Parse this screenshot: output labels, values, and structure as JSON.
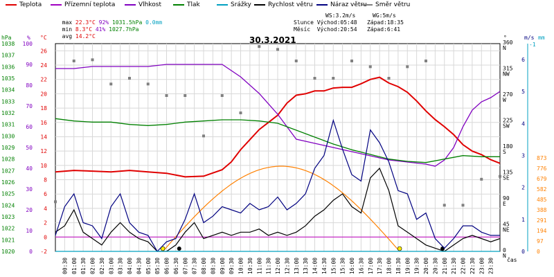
{
  "legend": [
    {
      "label": "Teplota",
      "color": "#e00000"
    },
    {
      "label": "Přízemní teplota",
      "color": "#a000c0"
    },
    {
      "label": "Vlhkost",
      "color": "#8000c0"
    },
    {
      "label": "Tlak",
      "color": "#008000"
    },
    {
      "label": "Srážky",
      "color": "#00a0c0"
    },
    {
      "label": "Rychlost větru",
      "color": "#000000"
    },
    {
      "label": "Náraz větru",
      "color": "#000080"
    },
    {
      "label": "Směr větru",
      "color": "#808080"
    }
  ],
  "summary": {
    "max_label": "max",
    "max_temp": "22.3°C",
    "max_hum": "92%",
    "max_press": "1031.5hPa",
    "max_rain": "0.0mm",
    "min_label": "min",
    "min_temp": "8.3°C",
    "min_hum": "41%",
    "min_press": "1027.7hPa",
    "avg_label": "avg",
    "avg_temp": "14.2°C",
    "ws": "WS:3.2m/s",
    "wg": "WG:5m/s",
    "sun": "Slunce Východ:05:48   Západ:18:35",
    "moon": "Měsíc  Východ:20:54   Západ:6:41"
  },
  "title": "30.3.2021",
  "axes": {
    "hpa_unit": "hPa",
    "percent_unit": "%",
    "temp_unit": "°C",
    "deg_unit": "°",
    "ms_unit": "m/s",
    "mm_unit": "mm",
    "time_unit": "čas",
    "hpa_ticks": [
      "1020",
      "1021",
      "1022",
      "1023",
      "1024",
      "1025",
      "1026",
      "1027",
      "1028",
      "1029",
      "1030",
      "1031",
      "1032",
      "1033",
      "1034",
      "1035",
      "1036",
      "1037",
      "1038"
    ],
    "percent_ticks": [
      "0",
      "10",
      "20",
      "30",
      "40",
      "50",
      "60",
      "70",
      "80",
      "90",
      "100"
    ],
    "temp_ticks": [
      "-2",
      "0",
      "2",
      "4",
      "6",
      "8",
      "10",
      "12",
      "14",
      "16",
      "18",
      "20",
      "22",
      "24",
      "26"
    ],
    "direction_ticks": [
      {
        "deg": "360",
        "dir": "N"
      },
      {
        "deg": "315",
        "dir": "NW"
      },
      {
        "deg": "270",
        "dir": "W"
      },
      {
        "deg": "225",
        "dir": "SW"
      },
      {
        "deg": "180",
        "dir": "S"
      },
      {
        "deg": "135",
        "dir": "SE"
      },
      {
        "deg": "90",
        "dir": "E"
      },
      {
        "deg": "45",
        "dir": "NE"
      },
      {
        "deg": "0",
        "dir": "N"
      }
    ],
    "wind_ticks": [
      "0",
      "1",
      "2",
      "3",
      "4",
      "5",
      "6"
    ],
    "wind_top": "-1",
    "rain_ticks": [
      "0",
      "97",
      "194",
      "291",
      "388",
      "485",
      "582",
      "679",
      "776",
      "873"
    ],
    "time_ticks": [
      "00:30",
      "01:00",
      "01:30",
      "02:00",
      "02:30",
      "03:00",
      "03:30",
      "04:00",
      "04:30",
      "05:00",
      "05:30",
      "06:00",
      "06:30",
      "07:00",
      "07:30",
      "08:00",
      "08:30",
      "09:00",
      "09:30",
      "10:00",
      "10:30",
      "11:00",
      "11:30",
      "12:00",
      "12:30",
      "13:00",
      "13:30",
      "14:00",
      "14:30",
      "15:00",
      "15:30",
      "16:00",
      "16:30",
      "17:00",
      "17:30",
      "18:00",
      "18:30",
      "19:00",
      "19:30",
      "20:00",
      "20:30",
      "21:00",
      "21:30",
      "22:00",
      "22:30",
      "23:00",
      "23:30"
    ]
  },
  "chart_data": {
    "type": "line",
    "title": "30.3.2021",
    "x_unit": "hours",
    "series": [
      {
        "name": "Teplota",
        "axis": "°C",
        "color": "#e00000",
        "points": [
          [
            0,
            9.1
          ],
          [
            1,
            9.3
          ],
          [
            2,
            9.2
          ],
          [
            3,
            9.1
          ],
          [
            4,
            9.3
          ],
          [
            5,
            9.1
          ],
          [
            6,
            8.9
          ],
          [
            7,
            8.4
          ],
          [
            8,
            8.5
          ],
          [
            9,
            9.4
          ],
          [
            9.5,
            10.5
          ],
          [
            10,
            12.2
          ],
          [
            10.5,
            13.6
          ],
          [
            11,
            15.0
          ],
          [
            11.5,
            16.0
          ],
          [
            12,
            17.0
          ],
          [
            12.5,
            18.7
          ],
          [
            13,
            19.8
          ],
          [
            13.5,
            20.0
          ],
          [
            14,
            20.4
          ],
          [
            14.5,
            20.4
          ],
          [
            15,
            20.8
          ],
          [
            15.5,
            20.9
          ],
          [
            16,
            20.9
          ],
          [
            16.5,
            21.4
          ],
          [
            17,
            22.0
          ],
          [
            17.5,
            22.3
          ],
          [
            18,
            21.5
          ],
          [
            18.5,
            21.0
          ],
          [
            19,
            20.2
          ],
          [
            19.5,
            19.0
          ],
          [
            20,
            17.6
          ],
          [
            20.5,
            16.4
          ],
          [
            21,
            15.4
          ],
          [
            21.5,
            14.3
          ],
          [
            22,
            12.9
          ],
          [
            22.5,
            12.0
          ],
          [
            23,
            11.5
          ],
          [
            23.5,
            10.8
          ],
          [
            24,
            10.3
          ]
        ]
      },
      {
        "name": "Vlhkost",
        "axis": "%",
        "color": "#8000c0",
        "points": [
          [
            0,
            88
          ],
          [
            1,
            88
          ],
          [
            2,
            89
          ],
          [
            3,
            89
          ],
          [
            4,
            89
          ],
          [
            5,
            89
          ],
          [
            6,
            90
          ],
          [
            7,
            90
          ],
          [
            8,
            90
          ],
          [
            9,
            90
          ],
          [
            10,
            84
          ],
          [
            11,
            76
          ],
          [
            12,
            66
          ],
          [
            13,
            54
          ],
          [
            14,
            52
          ],
          [
            15,
            50
          ],
          [
            16,
            48
          ],
          [
            17,
            46
          ],
          [
            18,
            44
          ],
          [
            19,
            43
          ],
          [
            20,
            42
          ],
          [
            20.5,
            41
          ],
          [
            21,
            44
          ],
          [
            21.5,
            50
          ],
          [
            22,
            60
          ],
          [
            22.5,
            68
          ],
          [
            23,
            72
          ],
          [
            23.5,
            74
          ],
          [
            24,
            77
          ]
        ]
      },
      {
        "name": "Tlak",
        "axis": "hPa",
        "color": "#008000",
        "points": [
          [
            0,
            1031.5
          ],
          [
            1,
            1031.3
          ],
          [
            2,
            1031.2
          ],
          [
            3,
            1031.2
          ],
          [
            4,
            1031.0
          ],
          [
            5,
            1030.9
          ],
          [
            6,
            1031.0
          ],
          [
            7,
            1031.2
          ],
          [
            8,
            1031.3
          ],
          [
            9,
            1031.4
          ],
          [
            10,
            1031.4
          ],
          [
            11,
            1031.3
          ],
          [
            12,
            1031.1
          ],
          [
            13,
            1030.5
          ],
          [
            14,
            1029.9
          ],
          [
            15,
            1029.3
          ],
          [
            16,
            1028.8
          ],
          [
            17,
            1028.4
          ],
          [
            18,
            1028.0
          ],
          [
            19,
            1027.8
          ],
          [
            20,
            1027.7
          ],
          [
            21,
            1028.0
          ],
          [
            22,
            1028.3
          ],
          [
            23,
            1028.2
          ],
          [
            24,
            1028.2
          ]
        ]
      },
      {
        "name": "Rychlost větru",
        "axis": "m/s",
        "color": "#000000",
        "points": [
          [
            0,
            0.6
          ],
          [
            0.5,
            0.8
          ],
          [
            1,
            1.3
          ],
          [
            1.5,
            0.6
          ],
          [
            2,
            0.4
          ],
          [
            2.5,
            0.2
          ],
          [
            3,
            0.6
          ],
          [
            3.5,
            0.9
          ],
          [
            4,
            0.6
          ],
          [
            4.5,
            0.4
          ],
          [
            5,
            0.3
          ],
          [
            5.5,
            0.0
          ],
          [
            6,
            0.0
          ],
          [
            6.5,
            0.2
          ],
          [
            7,
            0.6
          ],
          [
            7.5,
            0.9
          ],
          [
            8,
            0.4
          ],
          [
            8.5,
            0.5
          ],
          [
            9,
            0.6
          ],
          [
            9.5,
            0.5
          ],
          [
            10,
            0.6
          ],
          [
            10.5,
            0.6
          ],
          [
            11,
            0.7
          ],
          [
            11.5,
            0.5
          ],
          [
            12,
            0.6
          ],
          [
            12.5,
            0.5
          ],
          [
            13,
            0.6
          ],
          [
            13.5,
            0.8
          ],
          [
            14,
            1.1
          ],
          [
            14.5,
            1.3
          ],
          [
            15,
            1.6
          ],
          [
            15.5,
            1.8
          ],
          [
            16,
            1.4
          ],
          [
            16.5,
            1.2
          ],
          [
            17,
            2.3
          ],
          [
            17.5,
            2.6
          ],
          [
            18,
            1.9
          ],
          [
            18.5,
            0.8
          ],
          [
            19,
            0.6
          ],
          [
            19.5,
            0.4
          ],
          [
            20,
            0.2
          ],
          [
            20.5,
            0.1
          ],
          [
            21,
            0.0
          ],
          [
            21.5,
            0.2
          ],
          [
            22,
            0.4
          ],
          [
            22.5,
            0.5
          ],
          [
            23,
            0.4
          ],
          [
            23.5,
            0.3
          ],
          [
            24,
            0.4
          ]
        ]
      },
      {
        "name": "Náraz větru",
        "axis": "m/s",
        "color": "#000080",
        "points": [
          [
            0,
            0.5
          ],
          [
            0.5,
            1.4
          ],
          [
            1,
            1.8
          ],
          [
            1.5,
            0.9
          ],
          [
            2,
            0.8
          ],
          [
            2.5,
            0.4
          ],
          [
            3,
            1.4
          ],
          [
            3.5,
            1.8
          ],
          [
            4,
            0.9
          ],
          [
            4.5,
            0.6
          ],
          [
            5,
            0.5
          ],
          [
            5.5,
            0.0
          ],
          [
            6,
            0.3
          ],
          [
            6.5,
            0.4
          ],
          [
            7,
            1.0
          ],
          [
            7.5,
            1.8
          ],
          [
            8,
            0.9
          ],
          [
            8.5,
            1.1
          ],
          [
            9,
            1.4
          ],
          [
            9.5,
            1.3
          ],
          [
            10,
            1.2
          ],
          [
            10.5,
            1.5
          ],
          [
            11,
            1.3
          ],
          [
            11.5,
            1.4
          ],
          [
            12,
            1.7
          ],
          [
            12.5,
            1.3
          ],
          [
            13,
            1.5
          ],
          [
            13.5,
            1.8
          ],
          [
            14,
            2.6
          ],
          [
            14.5,
            3.0
          ],
          [
            15,
            4.1
          ],
          [
            15.5,
            3.2
          ],
          [
            16,
            2.4
          ],
          [
            16.5,
            2.2
          ],
          [
            17,
            3.8
          ],
          [
            17.5,
            3.4
          ],
          [
            18,
            2.8
          ],
          [
            18.5,
            1.9
          ],
          [
            19,
            1.8
          ],
          [
            19.5,
            1.0
          ],
          [
            20,
            1.2
          ],
          [
            20.5,
            0.4
          ],
          [
            21,
            0.1
          ],
          [
            21.5,
            0.4
          ],
          [
            22,
            0.8
          ],
          [
            22.5,
            0.8
          ],
          [
            23,
            0.6
          ],
          [
            23.5,
            0.5
          ],
          [
            24,
            0.5
          ]
        ]
      },
      {
        "name": "Směr větru",
        "axis": "°",
        "color": "#808080",
        "style": "markers",
        "points": [
          [
            0,
            86
          ],
          [
            1,
            330
          ],
          [
            2,
            332
          ],
          [
            3,
            290
          ],
          [
            4,
            300
          ],
          [
            5,
            290
          ],
          [
            6,
            270
          ],
          [
            7,
            270
          ],
          [
            8,
            200
          ],
          [
            9,
            270
          ],
          [
            10,
            240
          ],
          [
            11,
            355
          ],
          [
            12,
            350
          ],
          [
            13,
            330
          ],
          [
            14,
            300
          ],
          [
            15,
            300
          ],
          [
            16,
            330
          ],
          [
            17,
            320
          ],
          [
            18,
            300
          ],
          [
            19,
            320
          ],
          [
            20,
            330
          ],
          [
            21,
            80
          ],
          [
            22,
            80
          ],
          [
            23,
            125
          ],
          [
            24,
            130
          ]
        ]
      },
      {
        "name": "Srážky",
        "axis": "mm",
        "color": "#00a0c0",
        "points": [
          [
            0,
            0
          ],
          [
            24,
            0
          ]
        ]
      }
    ],
    "sun_curve": {
      "color": "#ff8000",
      "rise_hours": 5.8,
      "set_hours": 18.583
    },
    "moon_curve": {
      "color": "#8800aa",
      "rise_hours": 20.9,
      "set_hours": 6.683
    },
    "ylim_temp": [
      -2,
      27
    ],
    "ylim_humidity": [
      0,
      100
    ],
    "ylim_pressure": [
      1020,
      1038
    ],
    "ylim_wind": [
      0,
      6.5
    ],
    "grid": true
  }
}
